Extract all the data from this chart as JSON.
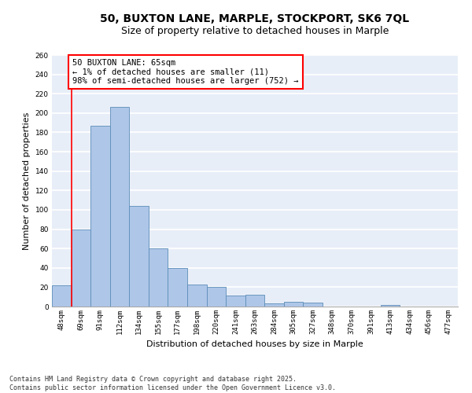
{
  "title1": "50, BUXTON LANE, MARPLE, STOCKPORT, SK6 7QL",
  "title2": "Size of property relative to detached houses in Marple",
  "xlabel": "Distribution of detached houses by size in Marple",
  "ylabel": "Number of detached properties",
  "categories": [
    "48sqm",
    "69sqm",
    "91sqm",
    "112sqm",
    "134sqm",
    "155sqm",
    "177sqm",
    "198sqm",
    "220sqm",
    "241sqm",
    "263sqm",
    "284sqm",
    "305sqm",
    "327sqm",
    "348sqm",
    "370sqm",
    "391sqm",
    "413sqm",
    "434sqm",
    "456sqm",
    "477sqm"
  ],
  "values": [
    22,
    80,
    187,
    206,
    104,
    60,
    40,
    23,
    20,
    11,
    12,
    3,
    5,
    4,
    0,
    0,
    0,
    2,
    0,
    0,
    0
  ],
  "bar_color": "#aec6e8",
  "bar_edge_color": "#5b8db8",
  "vline_x": 0.5,
  "vline_color": "red",
  "annotation_text": "50 BUXTON LANE: 65sqm\n← 1% of detached houses are smaller (11)\n98% of semi-detached houses are larger (752) →",
  "annotation_box_color": "white",
  "annotation_box_edgecolor": "red",
  "ylim": [
    0,
    260
  ],
  "yticks": [
    0,
    20,
    40,
    60,
    80,
    100,
    120,
    140,
    160,
    180,
    200,
    220,
    240,
    260
  ],
  "bg_color": "#e8eef8",
  "grid_color": "white",
  "footer": "Contains HM Land Registry data © Crown copyright and database right 2025.\nContains public sector information licensed under the Open Government Licence v3.0.",
  "title_fontsize": 10,
  "subtitle_fontsize": 9,
  "axis_label_fontsize": 8,
  "tick_fontsize": 6.5,
  "footer_fontsize": 6,
  "annotation_fontsize": 7.5
}
